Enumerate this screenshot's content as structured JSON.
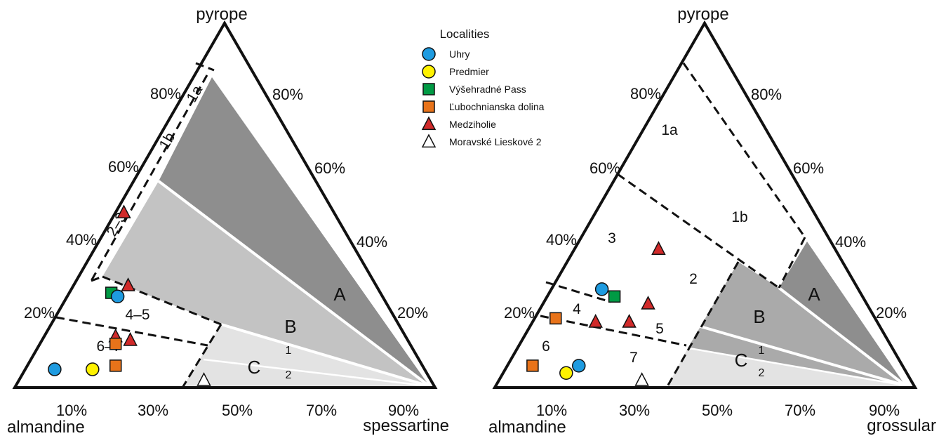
{
  "chart_data": [
    {
      "type": "ternary",
      "vertices": {
        "top": "pyrope",
        "left": "almandine",
        "right": "spessartine"
      },
      "left_tick_labels": [
        "20%",
        "40%",
        "60%",
        "80%"
      ],
      "right_tick_labels": [
        "20%",
        "40%",
        "60%",
        "80%"
      ],
      "bottom_tick_labels": [
        "10%",
        "30%",
        "50%",
        "70%",
        "90%"
      ],
      "fields": [
        {
          "label": "A",
          "fill": "#8e8e8e"
        },
        {
          "label": "B",
          "fill": "#c3c3c3"
        },
        {
          "label": "C",
          "fill": "#e3e3e3"
        }
      ],
      "subfield_labels": [
        "1a",
        "1b",
        "2–3",
        "4–5",
        "6–7",
        "1",
        "2"
      ],
      "points": [
        {
          "locality": "Uhry",
          "pyrope": 0.05,
          "spessartine": 0.07
        },
        {
          "locality": "Predmier",
          "pyrope": 0.05,
          "spessartine": 0.16
        },
        {
          "locality": "Ľubochnianska dolina",
          "pyrope": 0.06,
          "spessartine": 0.21
        },
        {
          "locality": "Moravské  Lieskové 2",
          "pyrope": 0.02,
          "spessartine": 0.44
        },
        {
          "locality": "Medziholie",
          "pyrope": 0.14,
          "spessartine": 0.17
        },
        {
          "locality": "Medziholie",
          "pyrope": 0.13,
          "spessartine": 0.21
        },
        {
          "locality": "Ľubochnianska dolina",
          "pyrope": 0.12,
          "spessartine": 0.18
        },
        {
          "locality": "Výšehradné Pass",
          "pyrope": 0.26,
          "spessartine": 0.1
        },
        {
          "locality": "Uhry",
          "pyrope": 0.25,
          "spessartine": 0.12
        },
        {
          "locality": "Medziholie",
          "pyrope": 0.28,
          "spessartine": 0.13
        },
        {
          "locality": "Medziholie",
          "pyrope": 0.48,
          "spessartine": 0.02
        }
      ]
    },
    {
      "type": "ternary",
      "vertices": {
        "top": "pyrope",
        "left": "almandine",
        "right": "grossular"
      },
      "left_tick_labels": [
        "20%",
        "40%",
        "60%",
        "80%"
      ],
      "right_tick_labels": [
        "20%",
        "40%",
        "60%",
        "80%"
      ],
      "bottom_tick_labels": [
        "10%",
        "30%",
        "50%",
        "70%",
        "90%"
      ],
      "fields": [
        {
          "label": "A",
          "fill": "#8e8e8e"
        },
        {
          "label": "B",
          "fill": "#aaaaaa"
        },
        {
          "label": "C",
          "fill": "#e3e3e3"
        }
      ],
      "subfield_labels": [
        "1a",
        "1b",
        "2",
        "3",
        "4",
        "5",
        "6",
        "7",
        "1",
        "2"
      ],
      "points": [
        {
          "locality": "Ľubochnianska dolina",
          "pyrope": 0.06,
          "grossular": 0.06
        },
        {
          "locality": "Predmier",
          "pyrope": 0.04,
          "grossular": 0.15
        },
        {
          "locality": "Uhry",
          "pyrope": 0.06,
          "grossular": 0.17
        },
        {
          "locality": "Moravské  Lieskové 2",
          "pyrope": 0.02,
          "grossular": 0.34
        },
        {
          "locality": "Ľubochnianska dolina",
          "pyrope": 0.19,
          "grossular": 0.05
        },
        {
          "locality": "Medziholie",
          "pyrope": 0.18,
          "grossular": 0.15
        },
        {
          "locality": "Medziholie",
          "pyrope": 0.18,
          "grossular": 0.23
        },
        {
          "locality": "Medziholie",
          "pyrope": 0.23,
          "grossular": 0.25
        },
        {
          "locality": "Uhry",
          "pyrope": 0.27,
          "grossular": 0.12
        },
        {
          "locality": "Výšehradné Pass",
          "pyrope": 0.25,
          "grossular": 0.16
        },
        {
          "locality": "Medziholie",
          "pyrope": 0.38,
          "grossular": 0.2
        }
      ]
    }
  ],
  "legend": {
    "title": "Localities",
    "items": [
      {
        "label": "Uhry",
        "shape": "circle",
        "color": "#1e9be0"
      },
      {
        "label": "Predmier",
        "shape": "circle",
        "color": "#fff200"
      },
      {
        "label": "Výšehradné Pass",
        "shape": "square",
        "color": "#009a44"
      },
      {
        "label": "Ľubochnianska dolina",
        "shape": "square",
        "color": "#e8731a"
      },
      {
        "label": "Medziholie",
        "shape": "triangle",
        "color": "#d12a2a"
      },
      {
        "label": "Moravské  Lieskové 2",
        "shape": "triangle",
        "color": "#ffffff"
      }
    ]
  }
}
